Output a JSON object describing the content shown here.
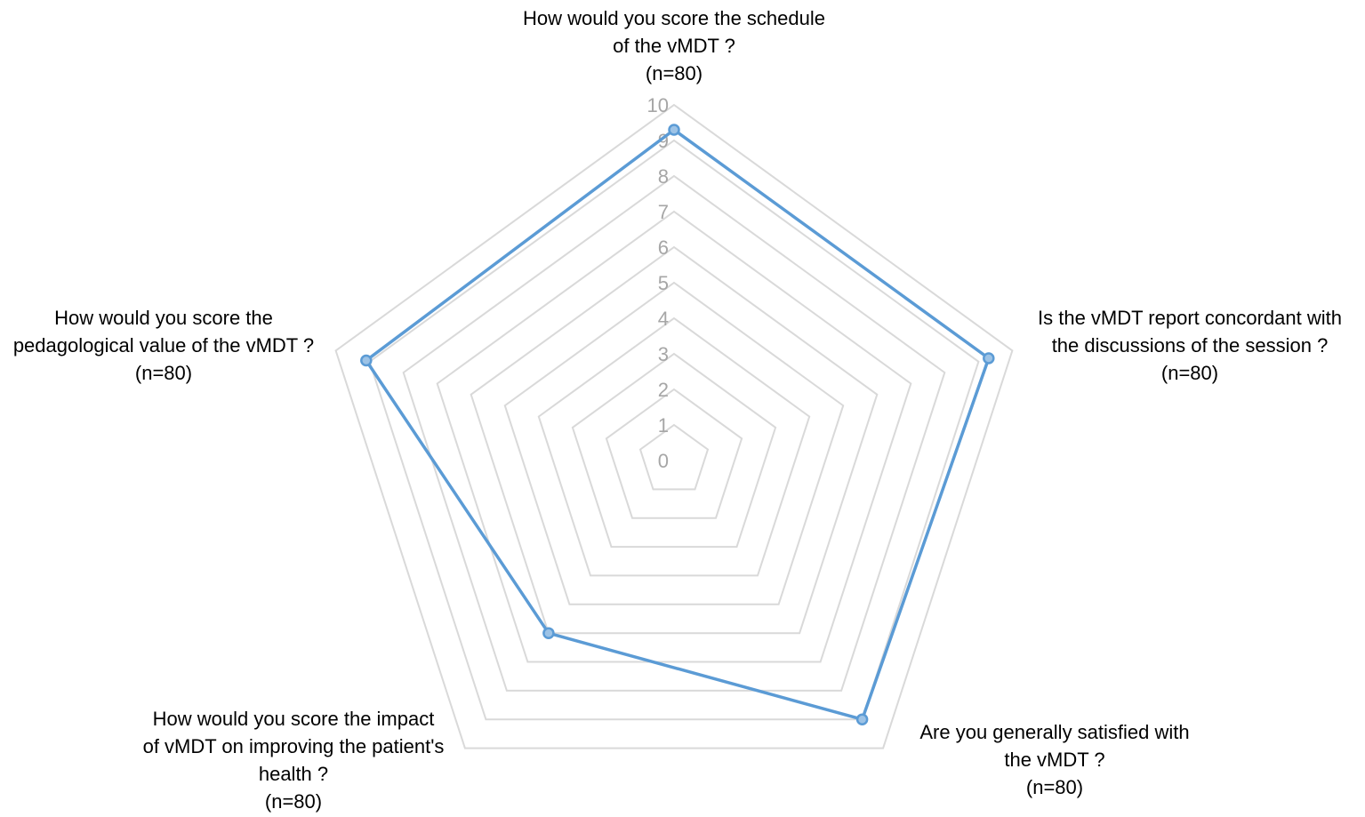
{
  "chart_data": {
    "type": "radar",
    "title": "",
    "r_min": 0,
    "r_max": 10,
    "r_step": 1,
    "tick_labels": [
      "0",
      "1",
      "2",
      "3",
      "4",
      "5",
      "6",
      "7",
      "8",
      "9",
      "10"
    ],
    "grid": true,
    "axes": [
      {
        "lines": [
          "How would you score the schedule",
          "of the vMDT ?",
          "(n=80)"
        ]
      },
      {
        "lines": [
          "Is the vMDT report concordant with",
          "the discussions of the session ?",
          "(n=80)"
        ]
      },
      {
        "lines": [
          "Are you generally satisfied with",
          "the vMDT ?",
          "(n=80)"
        ]
      },
      {
        "lines": [
          "How would you score the impact",
          "of vMDT on improving the patient's",
          "health ?",
          "(n=80)"
        ]
      },
      {
        "lines": [
          "How would you score the",
          "pedagological value of the vMDT ?",
          "(n=80)"
        ]
      }
    ],
    "series": [
      {
        "values": [
          9.3,
          9.3,
          9.0,
          6.0,
          9.1
        ]
      }
    ],
    "colors": {
      "series_line": "#5b9bd5",
      "series_marker_fill": "#9dc3e6",
      "grid": "#d9d9d9",
      "tick_text": "#a6a6a6",
      "axis_text": "#000000"
    }
  }
}
